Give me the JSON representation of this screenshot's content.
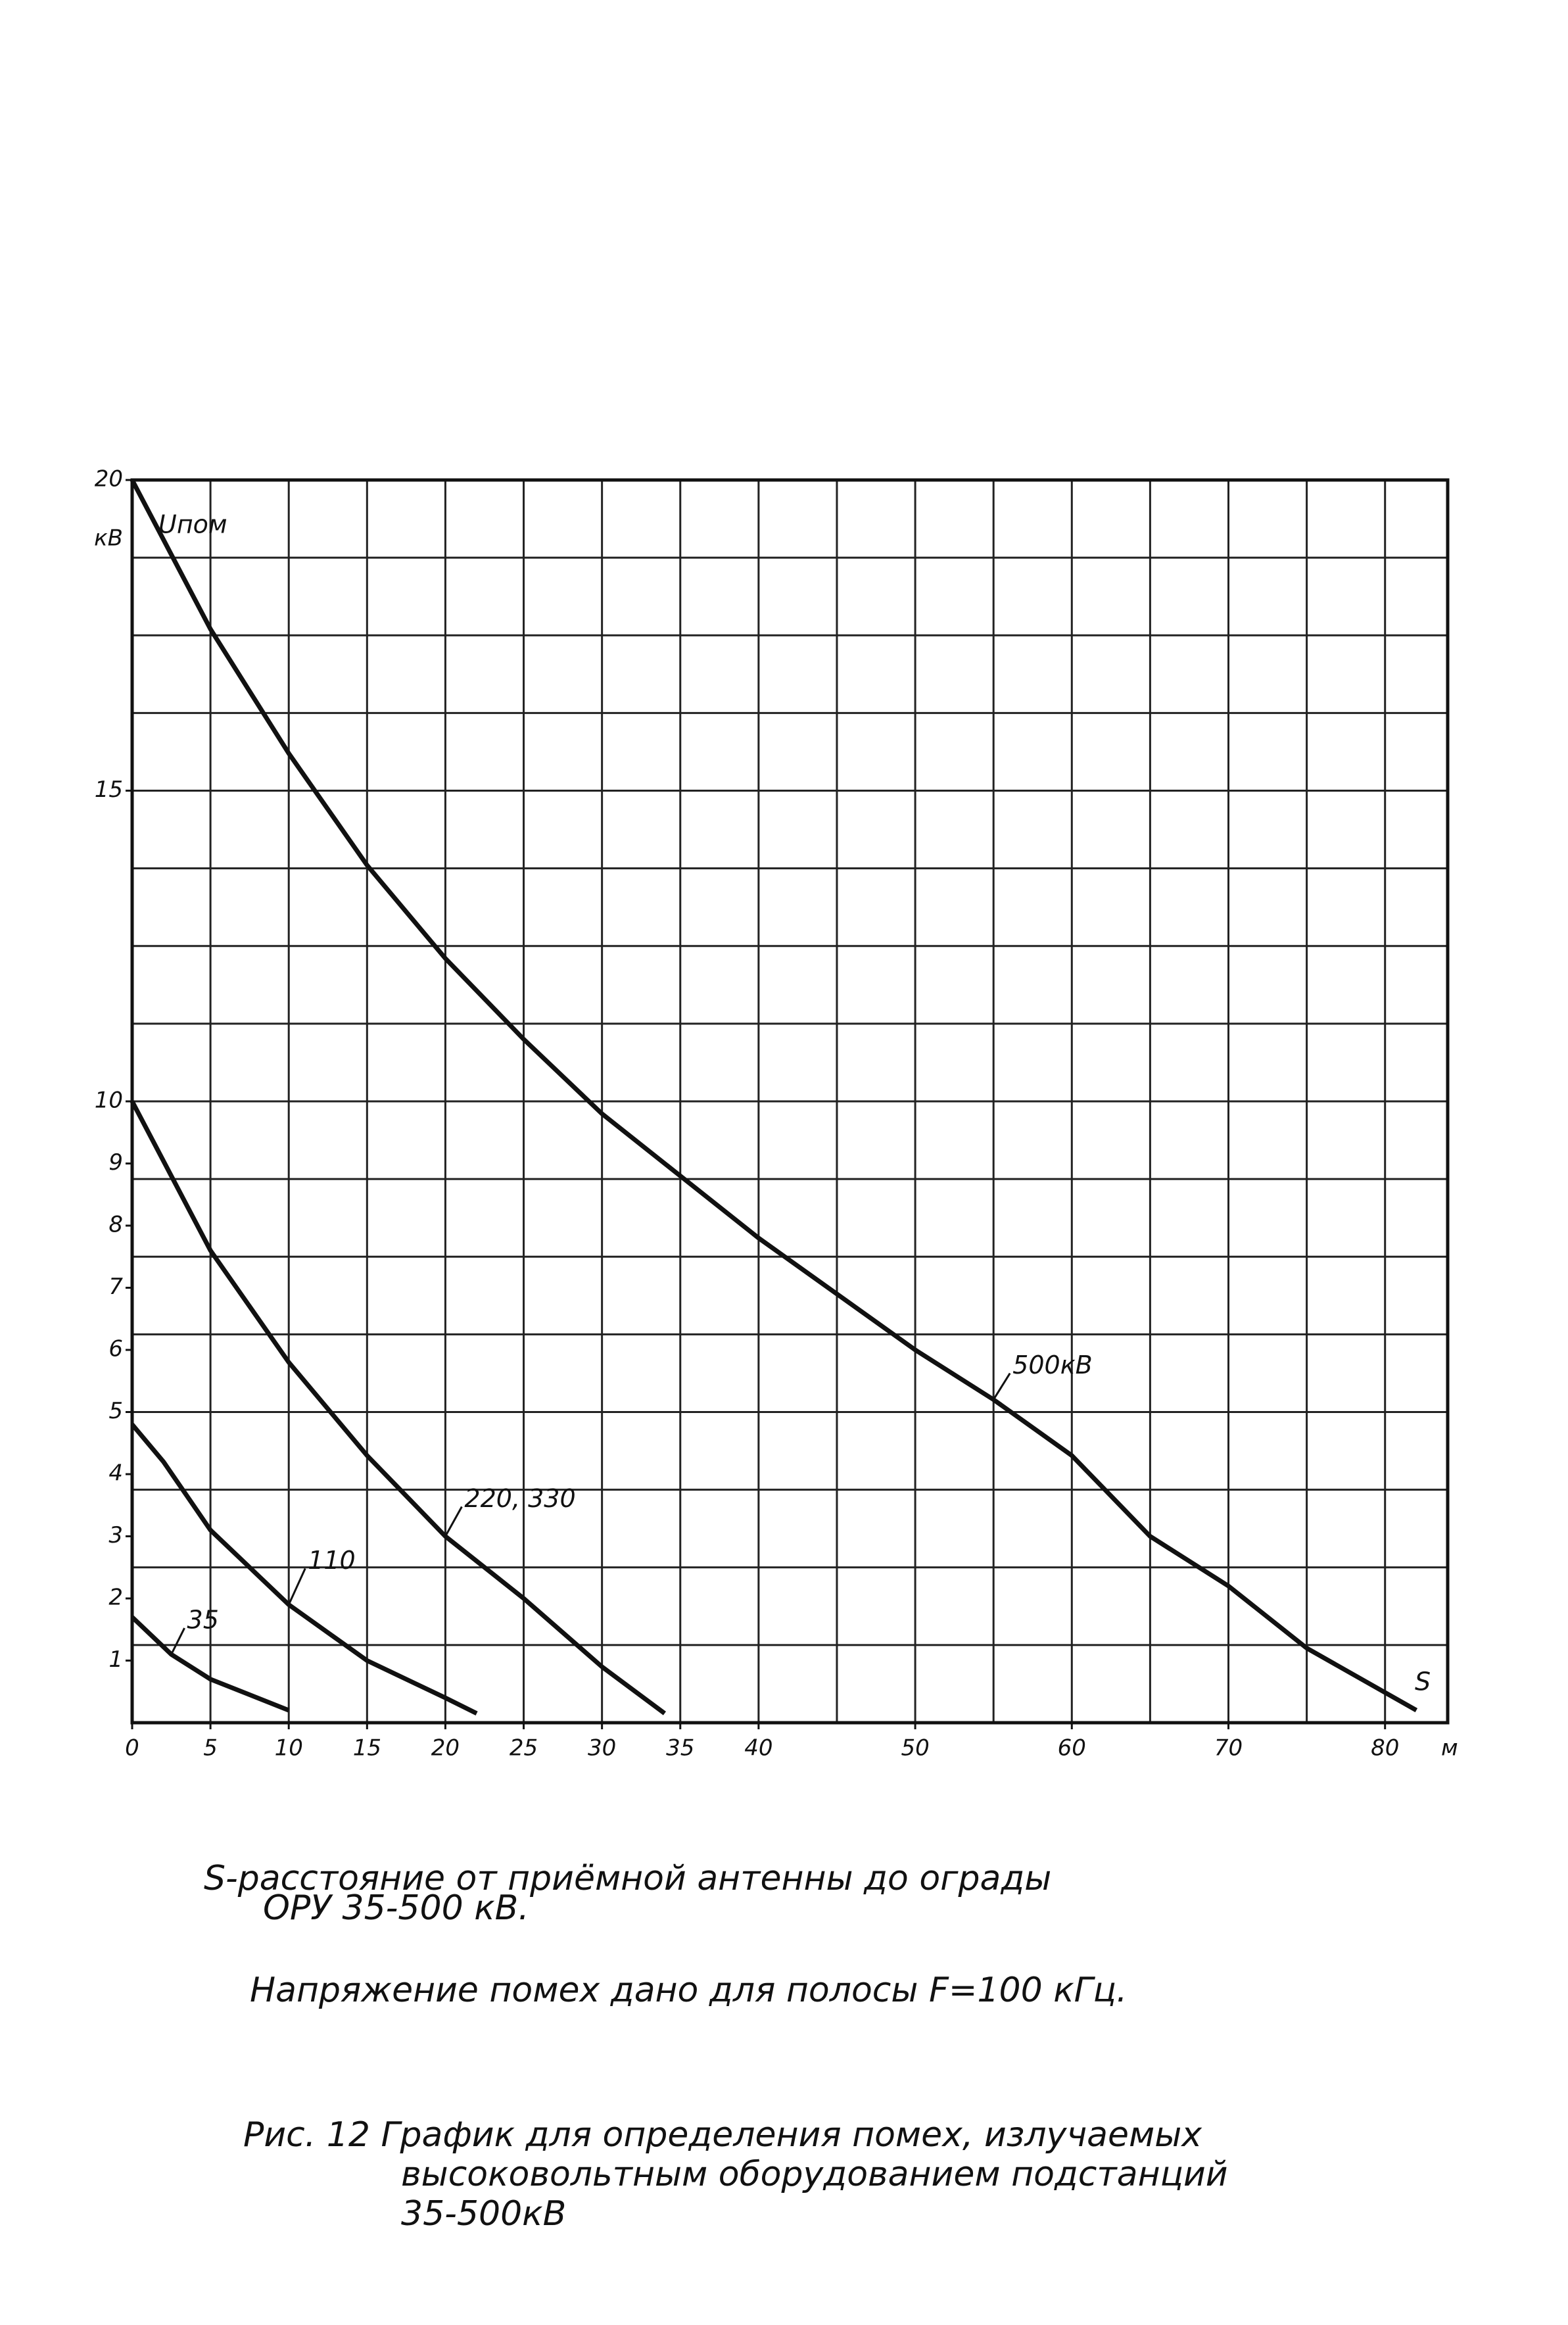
{
  "chart_data": {
    "type": "line",
    "xlabel": "S",
    "x_unit": "м",
    "ylabel": "Uпом",
    "y_unit": "кВ",
    "xlim": [
      0,
      84
    ],
    "ylim": [
      0,
      20
    ],
    "xticks": [
      0,
      5,
      10,
      15,
      20,
      25,
      30,
      35,
      40,
      50,
      60,
      70,
      80
    ],
    "yticks": [
      1,
      2,
      3,
      4,
      5,
      6,
      7,
      8,
      9,
      10,
      15,
      20
    ],
    "xgrid": [
      5,
      10,
      15,
      20,
      25,
      30,
      35,
      40,
      45,
      50,
      55,
      60,
      65,
      70,
      75,
      80
    ],
    "ygrid": [
      1.25,
      2.5,
      3.75,
      5,
      6.25,
      7.5,
      8.75,
      10,
      11.25,
      12.5,
      13.75,
      15,
      16.25,
      17.5,
      18.75
    ],
    "grid": true,
    "series": [
      {
        "name": "500кВ",
        "color": "#111111",
        "x": [
          0,
          5,
          10,
          15,
          20,
          25,
          30,
          35,
          40,
          50,
          55,
          60,
          65,
          70,
          75,
          82
        ],
        "values": [
          20,
          17.6,
          15.6,
          13.8,
          12.3,
          11.0,
          9.8,
          8.8,
          7.8,
          6.0,
          5.2,
          4.3,
          3.0,
          2.2,
          1.2,
          0.2
        ]
      },
      {
        "name": "220, 330",
        "color": "#111111",
        "x": [
          0,
          5,
          10,
          15,
          20,
          25,
          30,
          34
        ],
        "values": [
          10,
          7.6,
          5.8,
          4.3,
          3.0,
          2.0,
          0.9,
          0.15
        ]
      },
      {
        "name": "110",
        "color": "#111111",
        "x": [
          0,
          2,
          5,
          10,
          15,
          20,
          22
        ],
        "values": [
          4.8,
          4.2,
          3.1,
          1.9,
          1.0,
          0.4,
          0.15
        ]
      },
      {
        "name": "35",
        "color": "#111111",
        "x": [
          0,
          2.5,
          5,
          10
        ],
        "values": [
          1.7,
          1.1,
          0.7,
          0.2
        ]
      }
    ],
    "notes": [
      "S-расстояние от приёмной антенны до ограды",
      "ОРУ 35-500 кВ.",
      "Напряжение помех дано для полосы F=100 кГц."
    ],
    "caption": [
      "Рис. 12 График для определения помех, излучаемых",
      "высоковольтным оборудованием подстанций",
      "35-500кВ"
    ]
  }
}
